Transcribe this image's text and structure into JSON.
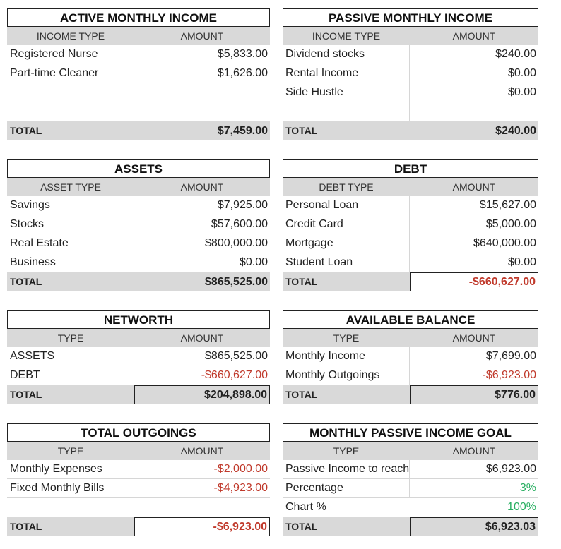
{
  "active": {
    "title": "ACTIVE MONTHLY INCOME",
    "col1": "INCOME TYPE",
    "col2": "AMOUNT",
    "rows": [
      {
        "label": "Registered Nurse",
        "amount": "$5,833.00"
      },
      {
        "label": "Part-time Cleaner",
        "amount": "$1,626.00"
      },
      {
        "label": "",
        "amount": ""
      },
      {
        "label": "",
        "amount": ""
      }
    ],
    "total_label": "TOTAL",
    "total": "$7,459.00"
  },
  "passive": {
    "title": "PASSIVE MONTHLY INCOME",
    "col1": "INCOME TYPE",
    "col2": "AMOUNT",
    "rows": [
      {
        "label": "Dividend stocks",
        "amount": "$240.00"
      },
      {
        "label": "Rental Income",
        "amount": "$0.00"
      },
      {
        "label": "Side Hustle",
        "amount": "$0.00"
      },
      {
        "label": "",
        "amount": ""
      }
    ],
    "total_label": "TOTAL",
    "total": "$240.00"
  },
  "assets": {
    "title": "ASSETS",
    "col1": "ASSET TYPE",
    "col2": "AMOUNT",
    "rows": [
      {
        "label": "Savings",
        "amount": "$7,925.00"
      },
      {
        "label": "Stocks",
        "amount": "$57,600.00"
      },
      {
        "label": "Real Estate",
        "amount": "$800,000.00"
      },
      {
        "label": "Business",
        "amount": "$0.00"
      }
    ],
    "total_label": "TOTAL",
    "total": "$865,525.00"
  },
  "debt": {
    "title": "DEBT",
    "col1": "DEBT TYPE",
    "col2": "AMOUNT",
    "rows": [
      {
        "label": "Personal Loan",
        "amount": "$15,627.00"
      },
      {
        "label": "Credit Card",
        "amount": "$5,000.00"
      },
      {
        "label": "Mortgage",
        "amount": "$640,000.00"
      },
      {
        "label": "Student Loan",
        "amount": "$0.00"
      }
    ],
    "total_label": "TOTAL",
    "total": "-$660,627.00"
  },
  "networth": {
    "title": "NETWORTH",
    "col1": "TYPE",
    "col2": "AMOUNT",
    "rows": [
      {
        "label": "ASSETS",
        "amount": "$865,525.00"
      },
      {
        "label": "DEBT",
        "amount": "-$660,627.00"
      }
    ],
    "total_label": "TOTAL",
    "total": "$204,898.00"
  },
  "balance": {
    "title": "AVAILABLE BALANCE",
    "col1": "TYPE",
    "col2": "AMOUNT",
    "rows": [
      {
        "label": "Monthly Income",
        "amount": "$7,699.00"
      },
      {
        "label": "Monthly Outgoings",
        "amount": "-$6,923.00"
      }
    ],
    "total_label": "TOTAL",
    "total": "$776.00"
  },
  "outgoings": {
    "title": "TOTAL OUTGOINGS",
    "col1": "TYPE",
    "col2": "AMOUNT",
    "rows": [
      {
        "label": "Monthly Expenses",
        "amount": "-$2,000.00"
      },
      {
        "label": "Fixed Monthly Bills",
        "amount": "-$4,923.00"
      },
      {
        "label": "",
        "amount": ""
      }
    ],
    "total_label": "TOTAL",
    "total": "-$6,923.00"
  },
  "goal": {
    "title": "MONTHLY PASSIVE INCOME GOAL",
    "col1": "TYPE",
    "col2": "AMOUNT",
    "rows": [
      {
        "label": "Passive Income to reach",
        "amount": "$6,923.00"
      },
      {
        "label": "Percentage",
        "amount": "3%"
      },
      {
        "label": "Chart %",
        "amount": "100%"
      }
    ],
    "total_label": "TOTAL",
    "total": "$6,923.03"
  },
  "colors": {
    "negative": "#c0392b",
    "positive_percent": "#27ae60",
    "header_fill": "#d9d9d9"
  }
}
